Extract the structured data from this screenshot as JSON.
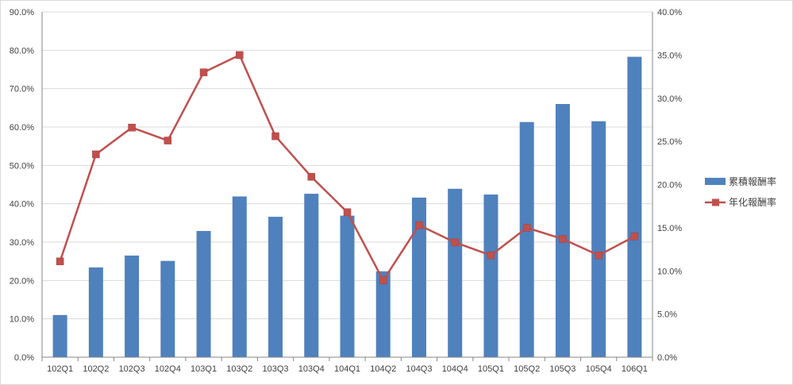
{
  "chart_data": {
    "type": "bar",
    "categories": [
      "102Q1",
      "102Q2",
      "102Q3",
      "102Q4",
      "103Q1",
      "103Q2",
      "103Q3",
      "103Q4",
      "104Q1",
      "104Q2",
      "104Q3",
      "104Q4",
      "105Q1",
      "105Q2",
      "105Q3",
      "105Q4",
      "106Q1"
    ],
    "series": [
      {
        "name": "累積報酬率",
        "type": "bar",
        "axis": "left",
        "color": "#4f81bd",
        "values": [
          11.0,
          23.4,
          26.5,
          25.1,
          32.9,
          41.9,
          36.6,
          42.6,
          36.9,
          22.4,
          41.6,
          43.9,
          42.4,
          61.3,
          66.0,
          61.5,
          78.3
        ]
      },
      {
        "name": "年化報酬率",
        "type": "line",
        "axis": "right",
        "color": "#c0504d",
        "marker": "square",
        "values": [
          11.1,
          23.5,
          26.6,
          25.1,
          33.0,
          35.0,
          25.6,
          20.9,
          16.8,
          8.9,
          15.3,
          13.3,
          11.8,
          15.0,
          13.7,
          11.8,
          14.0
        ]
      }
    ],
    "y_left": {
      "range": [
        0,
        90
      ],
      "step": 10,
      "tick_labels": [
        "0.0%",
        "10.0%",
        "20.0%",
        "30.0%",
        "40.0%",
        "50.0%",
        "60.0%",
        "70.0%",
        "80.0%",
        "90.0%"
      ]
    },
    "y_right": {
      "range": [
        0,
        40
      ],
      "step": 5,
      "tick_labels": [
        "0.0%",
        "5.0%",
        "10.0%",
        "15.0%",
        "20.0%",
        "25.0%",
        "30.0%",
        "35.0%",
        "40.0%"
      ]
    },
    "grid": true,
    "legend_position": "right",
    "title": "",
    "xlabel": "",
    "ylabel": ""
  }
}
